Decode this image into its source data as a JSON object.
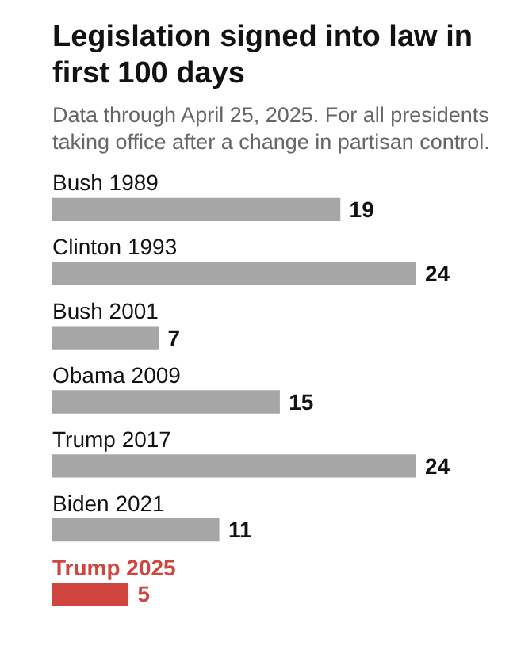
{
  "chart_data": {
    "type": "bar",
    "orientation": "horizontal",
    "title": "Legislation signed into law in first 100 days",
    "subtitle": "Data through April 25, 2025. For all presidents taking office after a change in partisan control.",
    "categories": [
      "Bush 1989",
      "Clinton 1993",
      "Bush 2001",
      "Obama 2009",
      "Trump 2017",
      "Biden 2021",
      "Trump 2025"
    ],
    "values": [
      19,
      24,
      7,
      15,
      24,
      11,
      5
    ],
    "colors": [
      "#a6a6a6",
      "#a6a6a6",
      "#a6a6a6",
      "#a6a6a6",
      "#a6a6a6",
      "#a6a6a6",
      "#d0453f"
    ],
    "data_labels": true
  }
}
